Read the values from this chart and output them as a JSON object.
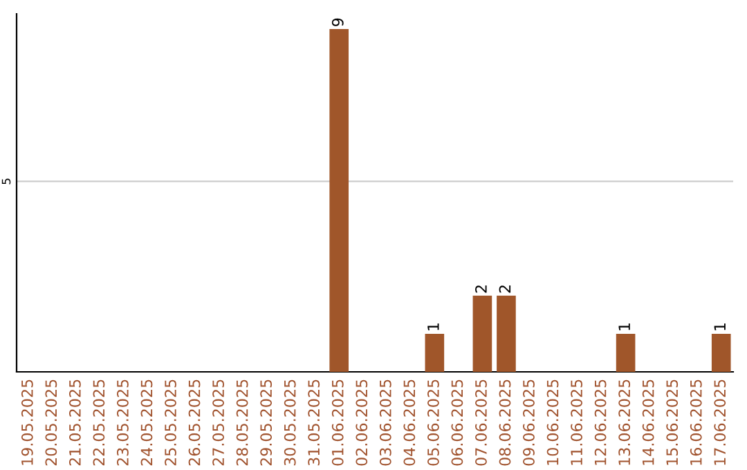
{
  "chart_data": {
    "type": "bar",
    "ylim": [
      0,
      9.4
    ],
    "categories": [
      "19.05.2025",
      "20.05.2025",
      "21.05.2025",
      "22.05.2025",
      "23.05.2025",
      "24.05.2025",
      "25.05.2025",
      "26.05.2025",
      "27.05.2025",
      "28.05.2025",
      "29.05.2025",
      "30.05.2025",
      "31.05.2025",
      "01.06.2025",
      "02.06.2025",
      "03.06.2025",
      "04.06.2025",
      "05.06.2025",
      "06.06.2025",
      "07.06.2025",
      "08.06.2025",
      "09.06.2025",
      "10.06.2025",
      "11.06.2025",
      "12.06.2025",
      "13.06.2025",
      "14.06.2025",
      "15.06.2025",
      "16.06.2025",
      "17.06.2025"
    ],
    "values": [
      null,
      null,
      null,
      null,
      null,
      null,
      null,
      null,
      null,
      null,
      null,
      null,
      null,
      9,
      null,
      null,
      null,
      1,
      null,
      2,
      2,
      null,
      null,
      null,
      null,
      1,
      null,
      null,
      null,
      1
    ],
    "value_labels": [
      null,
      null,
      null,
      null,
      null,
      null,
      null,
      null,
      null,
      null,
      null,
      null,
      null,
      "9",
      null,
      null,
      null,
      "1",
      null,
      "2",
      "2",
      null,
      null,
      null,
      null,
      "1",
      null,
      null,
      null,
      "1"
    ],
    "yticks": [
      {
        "value": 0,
        "label": null
      },
      5
    ],
    "grid": "y",
    "color": "#a0562a"
  }
}
